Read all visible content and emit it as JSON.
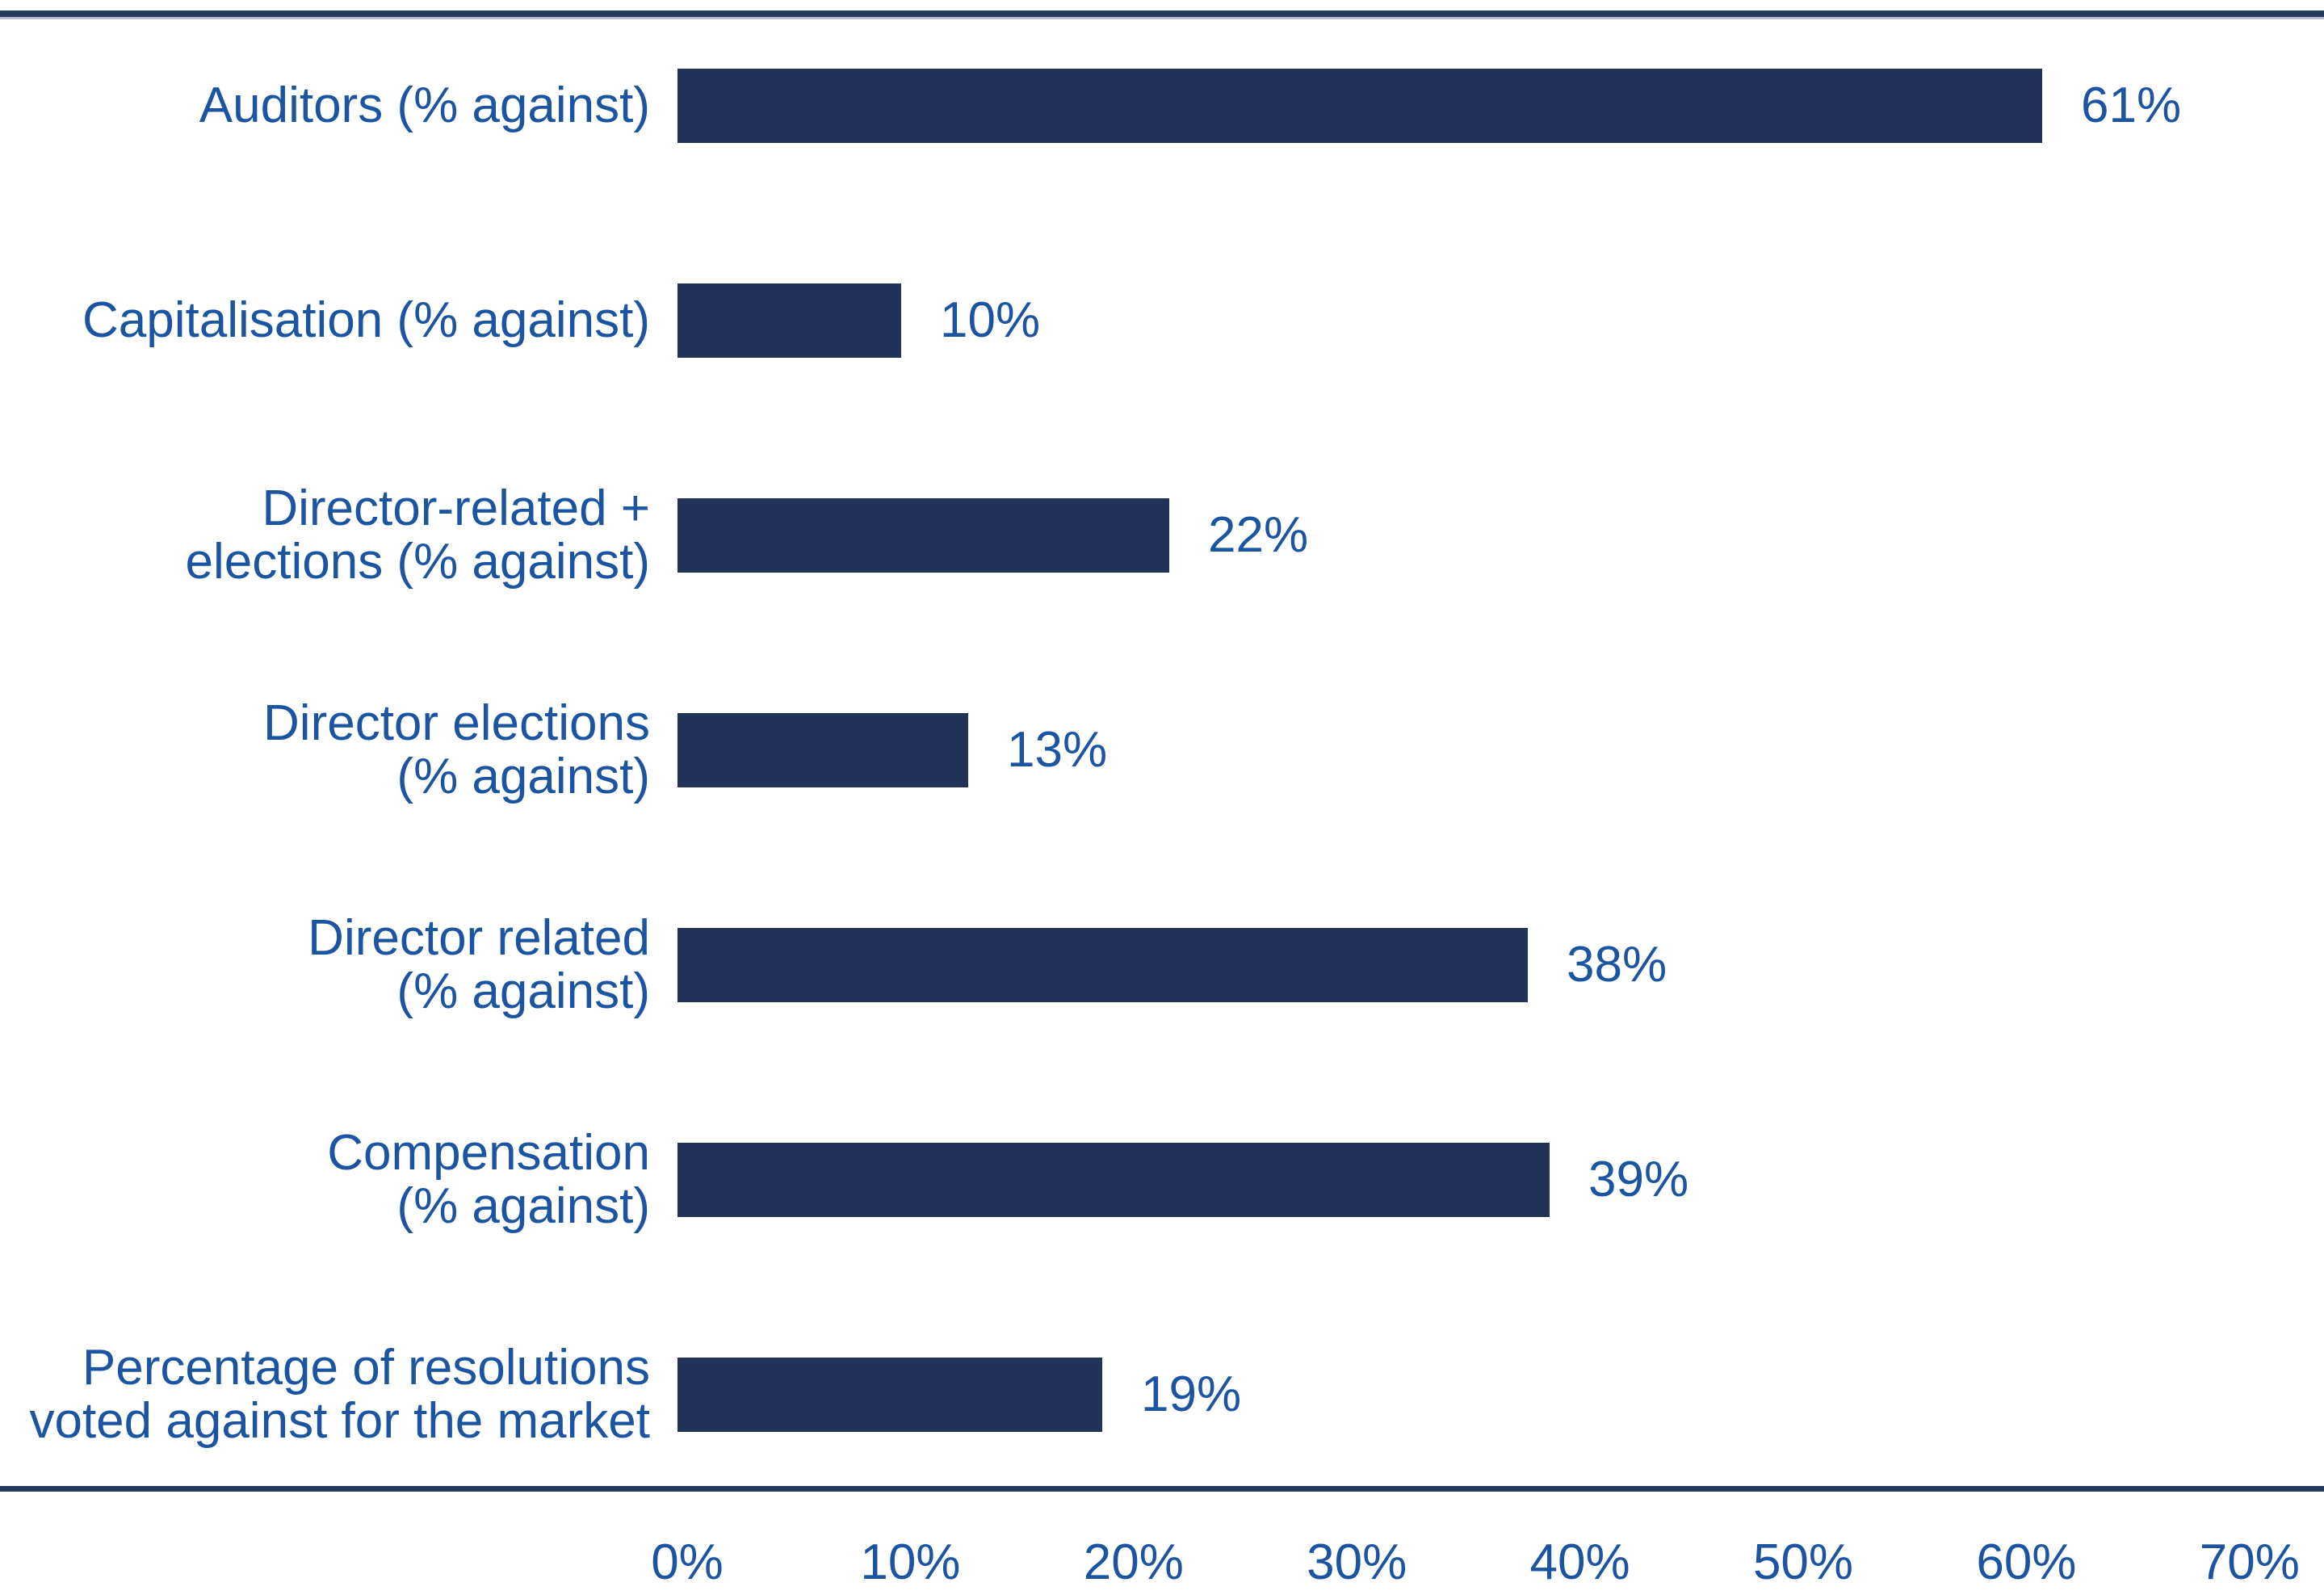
{
  "chart_data": {
    "type": "bar",
    "orientation": "horizontal",
    "title": "",
    "xlabel": "",
    "ylabel": "",
    "xlim": [
      0,
      70
    ],
    "grid": false,
    "legend": "none",
    "categories": [
      "Auditors (% against)",
      "Capitalisation (% against)",
      "Director-related +\nelections (% against)",
      "Director elections\n(% against)",
      "Director related\n(% against)",
      "Compensation\n(% against)",
      "Percentage of resolutions\nvoted against for the market"
    ],
    "values": [
      61,
      10,
      22,
      13,
      38,
      39,
      19
    ],
    "value_labels": [
      "61%",
      "10%",
      "22%",
      "13%",
      "38%",
      "39%",
      "19%"
    ],
    "x_tick_labels": [
      "0%",
      "10%",
      "20%",
      "30%",
      "40%",
      "50%",
      "60%",
      "70%"
    ],
    "x_tick_values": [
      0,
      10,
      20,
      30,
      40,
      50,
      60,
      70
    ]
  },
  "styles": {
    "bar_color": "#213358",
    "label_color": "#1b54a0",
    "rule_color": "#243a61"
  }
}
